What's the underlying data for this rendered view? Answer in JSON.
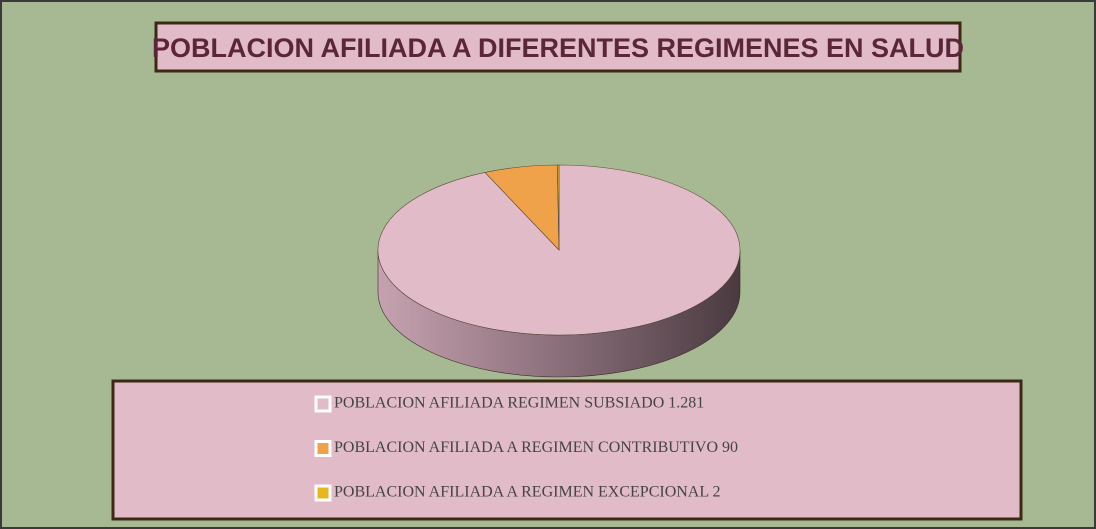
{
  "chart_data": {
    "type": "pie",
    "title": "POBLACION AFILIADA A DIFERENTES REGIMENES EN SALUD",
    "categories": [
      "POBLACION AFILIADA REGIMEN SUBSIADO 1.281",
      "POBLACION AFILIADA A REGIMEN CONTRIBUTIVO 90",
      "POBLACION AFILIADA A REGIMEN EXCEPCIONAL 2"
    ],
    "values": [
      1281,
      90,
      2
    ],
    "colors": [
      "#e2bbc9",
      "#f0a24a",
      "#e8b620"
    ],
    "legend": "bottom"
  }
}
